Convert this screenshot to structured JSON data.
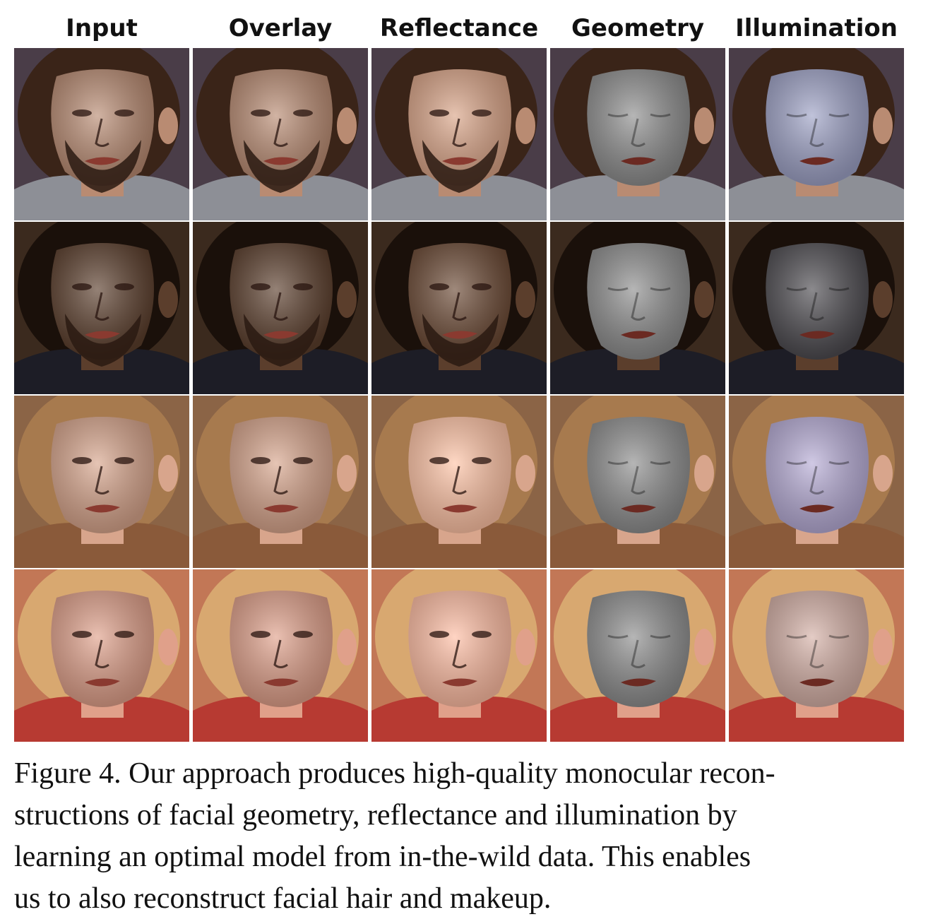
{
  "figure": {
    "columns": [
      "Input",
      "Overlay",
      "Reflectance",
      "Geometry",
      "Illumination"
    ],
    "rows": [
      {
        "subject": "bearded man, grey hoodie",
        "skin": "#b98b72",
        "bg": "#4a3d48",
        "hair": "#3a2418",
        "cloth": "#8d8f96",
        "beard": true
      },
      {
        "subject": "man, dark suit",
        "skin": "#5b3e2c",
        "bg": "#3b2a1e",
        "hair": "#1a100a",
        "cloth": "#1d1d26",
        "beard": true
      },
      {
        "subject": "woman, long blond hair",
        "skin": "#d8a58c",
        "bg": "#8b6446",
        "hair": "#a77a4e",
        "cloth": "#8a5a3a",
        "beard": false
      },
      {
        "subject": "woman, blond hair, red top",
        "skin": "#e0a08a",
        "bg": "#c27756",
        "hair": "#d8a870",
        "cloth": "#b73a32",
        "beard": false
      }
    ],
    "geometry_color": "#8e8e8e",
    "illumination_colors": [
      "#9ea2c6",
      "#4d4b50",
      "#b7acd6",
      "#d5b0a6"
    ],
    "caption": {
      "label": "Figure 4.",
      "lines": [
        "Our approach produces high-quality monocular recon-",
        "structions of facial geometry, reflectance and illumination by",
        "learning an optimal model from in-the-wild data.  This enables",
        "us to also reconstruct facial hair and makeup."
      ]
    }
  }
}
